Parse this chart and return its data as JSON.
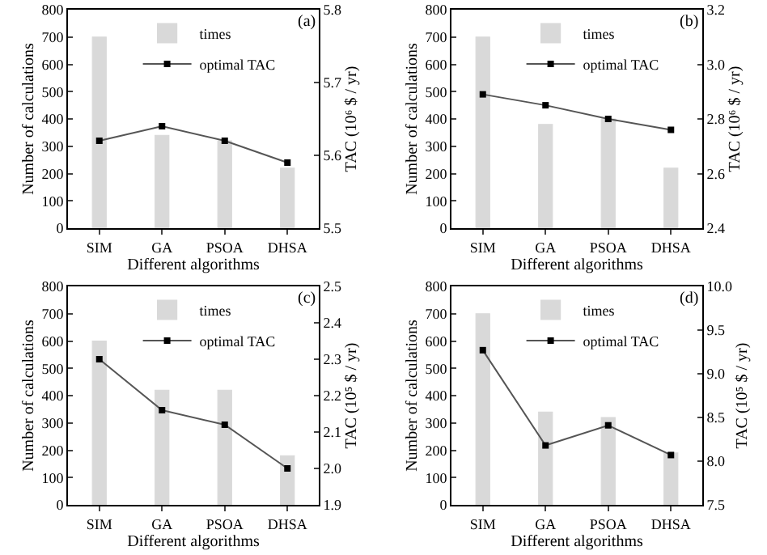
{
  "chart_data": [
    {
      "type": "bar",
      "categories": [
        "SIM",
        "GA",
        "PSOA",
        "DHSA"
      ],
      "xlabel": "Different algorithms",
      "ylabel": "Number of calculations",
      "y2label": "TAC (10⁶ $ / yr)",
      "annotations": [
        "(a)"
      ],
      "legend": "top right",
      "marker": "square",
      "ylim": [
        0,
        800
      ],
      "yticks": [
        0,
        100,
        200,
        300,
        400,
        500,
        600,
        700,
        800
      ],
      "y2lim": [
        5.5,
        5.8
      ],
      "y2ticks": [
        5.5,
        5.6,
        5.7,
        5.8
      ],
      "series": [
        {
          "name": "times",
          "color": "#d9d9d9",
          "values": [
            700,
            340,
            320,
            220
          ]
        },
        {
          "name": "optimal TAC",
          "type": "line",
          "axis": "y2",
          "color": "#555555",
          "values": [
            5.62,
            5.64,
            5.62,
            5.59
          ]
        }
      ]
    },
    {
      "type": "bar",
      "categories": [
        "SIM",
        "GA",
        "PSOA",
        "DHSA"
      ],
      "xlabel": "Different algorithms",
      "ylabel": "Number of calculations",
      "y2label": "TAC (10⁶ $ / yr)",
      "annotations": [
        "(b)"
      ],
      "legend": "top right",
      "marker": "square",
      "ylim": [
        0,
        800
      ],
      "yticks": [
        0,
        100,
        200,
        300,
        400,
        500,
        600,
        700,
        800
      ],
      "y2lim": [
        2.4,
        3.2
      ],
      "y2ticks": [
        2.4,
        2.6,
        2.8,
        {
          "value": 3,
          "label": "3.0"
        },
        3.2
      ],
      "series": [
        {
          "name": "times",
          "color": "#d9d9d9",
          "values": [
            700,
            380,
            400,
            220
          ]
        },
        {
          "name": "optimal TAC",
          "type": "line",
          "axis": "y2",
          "color": "#555555",
          "values": [
            2.89,
            2.85,
            2.8,
            2.76
          ]
        }
      ]
    },
    {
      "type": "bar",
      "categories": [
        "SIM",
        "GA",
        "PSOA",
        "DHSA"
      ],
      "xlabel": "Different algorithms",
      "ylabel": "Number of calculations",
      "y2label": "TAC (10⁵ $ / yr)",
      "annotations": [
        "(c)"
      ],
      "legend": "top right",
      "marker": "square",
      "ylim": [
        0,
        800
      ],
      "yticks": [
        0,
        100,
        200,
        300,
        400,
        500,
        600,
        700,
        800
      ],
      "y2lim": [
        1.9,
        2.5
      ],
      "y2ticks": [
        1.9,
        {
          "value": 2,
          "label": "2.0"
        },
        2.1,
        2.2,
        2.3,
        2.4,
        2.5
      ],
      "series": [
        {
          "name": "times",
          "color": "#d9d9d9",
          "values": [
            600,
            420,
            420,
            180
          ]
        },
        {
          "name": "optimal TAC",
          "type": "line",
          "axis": "y2",
          "color": "#555555",
          "values": [
            2.3,
            2.16,
            2.12,
            2.0
          ]
        }
      ]
    },
    {
      "type": "bar",
      "categories": [
        "SIM",
        "GA",
        "PSOA",
        "DHSA"
      ],
      "xlabel": "Different algorithms",
      "ylabel": "Number of calculations",
      "y2label": "TAC (10⁵ $ / yr)",
      "annotations": [
        "(d)"
      ],
      "legend": "top right",
      "marker": "square",
      "ylim": [
        0,
        800
      ],
      "yticks": [
        0,
        100,
        200,
        300,
        400,
        500,
        600,
        700,
        800
      ],
      "y2lim": [
        7.5,
        10
      ],
      "y2ticks": [
        7.5,
        {
          "value": 8,
          "label": "8.0"
        },
        8.5,
        {
          "value": 9,
          "label": "9.0"
        },
        9.5,
        {
          "value": 10,
          "label": "10.0"
        }
      ],
      "series": [
        {
          "name": "times",
          "color": "#d9d9d9",
          "values": [
            700,
            340,
            320,
            190
          ]
        },
        {
          "name": "optimal TAC",
          "type": "line",
          "axis": "y2",
          "color": "#555555",
          "values": [
            9.27,
            8.18,
            8.41,
            8.07
          ]
        }
      ]
    }
  ]
}
